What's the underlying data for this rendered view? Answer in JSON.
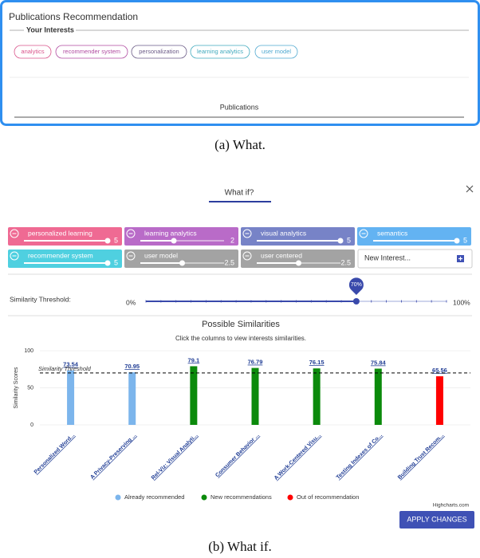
{
  "panel_a": {
    "title": "Publications Recommendation",
    "section_title": "Your Interests",
    "interests": [
      {
        "label": "analytics",
        "color": "#d9538a"
      },
      {
        "label": "recommender system",
        "color": "#b04aa0"
      },
      {
        "label": "personalization",
        "color": "#6a5a86"
      },
      {
        "label": "learning analytics",
        "color": "#3fa9bd"
      },
      {
        "label": "user model",
        "color": "#4fa8d0"
      }
    ],
    "tab": "Publications"
  },
  "caption_a": "(a) What.",
  "panel_b": {
    "tab": "What if?",
    "interests": [
      {
        "label": "personalized learning",
        "value": 5,
        "color": "#ef6a93"
      },
      {
        "label": "learning analytics",
        "value": 2,
        "color": "#b96bc8"
      },
      {
        "label": "visual analytics",
        "value": 5,
        "color": "#7783c7"
      },
      {
        "label": "semantics",
        "value": 5,
        "color": "#63b3f2"
      },
      {
        "label": "recommender system",
        "value": 5,
        "color": "#4fd0e0"
      },
      {
        "label": "user model",
        "value": 2.5,
        "color": "#a3a3a3"
      },
      {
        "label": "user centered",
        "value": 2.5,
        "color": "#a3a3a3"
      }
    ],
    "slider_lim": [
      0,
      5
    ],
    "new_interest_placeholder": "New Interest...",
    "threshold": {
      "label": "Similarity Threshold:",
      "min_label": "0%",
      "max_label": "100%",
      "lim": [
        0,
        100
      ],
      "value": 70,
      "value_label": "70%"
    },
    "credit": "Highcharts.com",
    "button": "APPLY CHANGES"
  },
  "chart_data": {
    "type": "bar",
    "title": "Possible Similarities",
    "subtitle": "Click the columns to view interests similarities.",
    "y_label": "Similarity Scores",
    "threshold_label": "Similarity Threshold",
    "categories": [
      "Personalized Word...",
      "A Privacy-Preserving ...",
      "Rel-Viz: Visual Analyti...",
      "Consumer Behavior ...",
      "A Work-Centered Visu...",
      "Testing Indexes of Co...",
      "Building Trust Recom..."
    ],
    "series": [
      {
        "name": "Already recommended",
        "color": "#7cb5ec",
        "values": [
          73.54,
          70.95,
          null,
          null,
          null,
          null,
          null
        ]
      },
      {
        "name": "New recommendations",
        "color": "#0b8a0b",
        "values": [
          null,
          null,
          79.1,
          76.79,
          76.15,
          75.84,
          null
        ]
      },
      {
        "name": "Out of recommendation",
        "color": "#ff0000",
        "values": [
          null,
          null,
          null,
          null,
          null,
          null,
          65.56
        ]
      }
    ],
    "ylim": [
      0,
      100
    ],
    "yticks": [
      0,
      50,
      100
    ],
    "grid": true
  },
  "caption_b": "(b) What if."
}
